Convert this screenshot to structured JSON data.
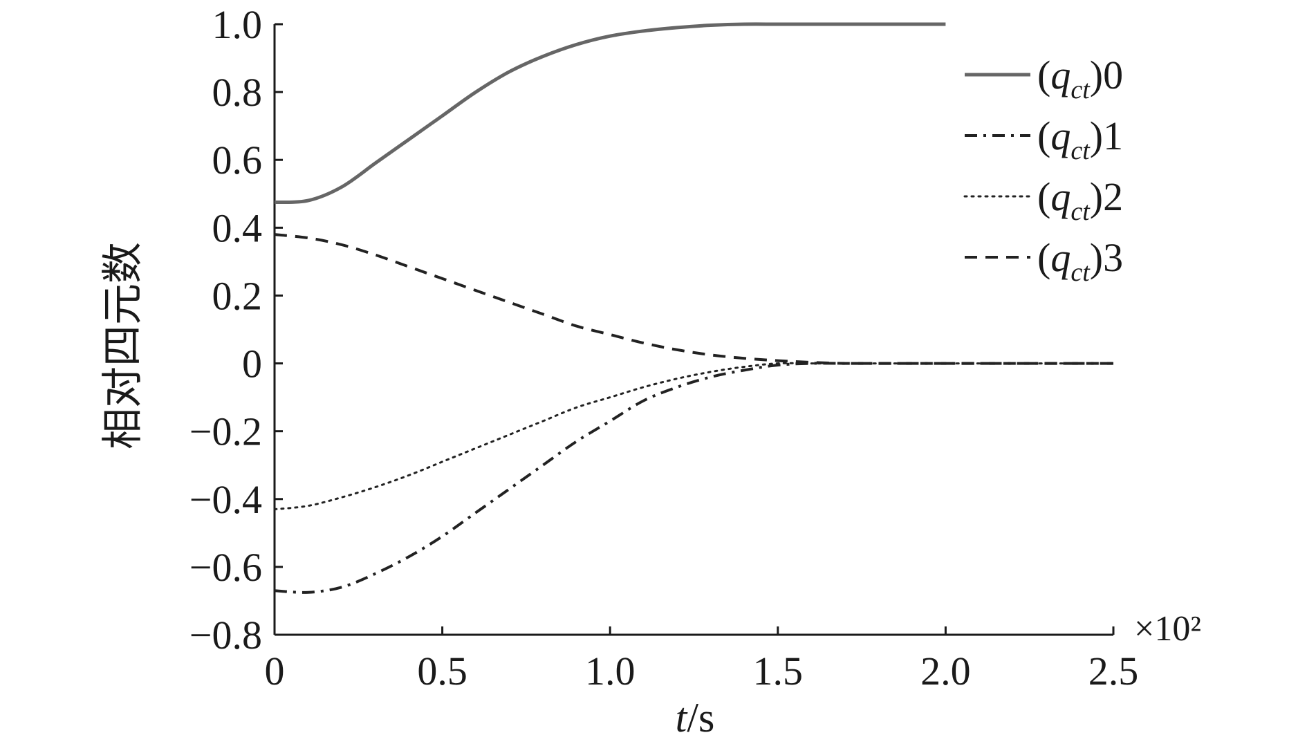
{
  "chart_data": {
    "type": "line",
    "title": "",
    "xlabel": "t/s",
    "ylabel": "相对四元数",
    "x_multiplier": "×10²",
    "xlim": [
      0,
      2.5
    ],
    "ylim": [
      -0.8,
      1.0
    ],
    "x_ticks": [
      {
        "value": 0,
        "label": "0"
      },
      {
        "value": 0.5,
        "label": "0.5"
      },
      {
        "value": 1.0,
        "label": "1.0"
      },
      {
        "value": 1.5,
        "label": "1.5"
      },
      {
        "value": 2.0,
        "label": "2.0"
      },
      {
        "value": 2.5,
        "label": "2.5"
      }
    ],
    "y_ticks": [
      {
        "value": 1.0,
        "label": "1.0"
      },
      {
        "value": 0.8,
        "label": "0.8"
      },
      {
        "value": 0.6,
        "label": "0.6"
      },
      {
        "value": 0.4,
        "label": "0.4"
      },
      {
        "value": 0.2,
        "label": "0.2"
      },
      {
        "value": 0,
        "label": "0"
      },
      {
        "value": -0.2,
        "label": "−0.2"
      },
      {
        "value": -0.4,
        "label": "−0.4"
      },
      {
        "value": -0.6,
        "label": "−0.6"
      },
      {
        "value": -0.8,
        "label": "−0.8"
      }
    ],
    "grid": false,
    "legend_position": "top-right",
    "series": [
      {
        "name": "(q_ct)0",
        "legend_base": "q",
        "legend_sub": "ct",
        "legend_suffix": "0",
        "color": "#666666",
        "style": "solid",
        "x": [
          0,
          0.1,
          0.2,
          0.3,
          0.4,
          0.5,
          0.6,
          0.7,
          0.8,
          0.9,
          1.0,
          1.1,
          1.2,
          1.3,
          1.4,
          1.5,
          1.6,
          1.7,
          1.8,
          1.9,
          2.0
        ],
        "y": [
          0.475,
          0.48,
          0.52,
          0.59,
          0.66,
          0.73,
          0.8,
          0.86,
          0.905,
          0.94,
          0.965,
          0.98,
          0.99,
          0.997,
          1.0,
          1.0,
          1.0,
          1.0,
          1.0,
          1.0,
          1.0
        ]
      },
      {
        "name": "(q_ct)1",
        "legend_base": "q",
        "legend_sub": "ct",
        "legend_suffix": "1",
        "color": "#222222",
        "style": "dashdot",
        "x": [
          0,
          0.1,
          0.2,
          0.3,
          0.4,
          0.5,
          0.6,
          0.7,
          0.8,
          0.9,
          1.0,
          1.1,
          1.2,
          1.3,
          1.4,
          1.5,
          1.6,
          1.7,
          1.8,
          1.9,
          2.0,
          2.1,
          2.2,
          2.3,
          2.4,
          2.5
        ],
        "y": [
          -0.67,
          -0.675,
          -0.66,
          -0.62,
          -0.57,
          -0.51,
          -0.44,
          -0.37,
          -0.3,
          -0.23,
          -0.17,
          -0.11,
          -0.07,
          -0.04,
          -0.02,
          -0.005,
          0,
          0,
          0,
          0,
          0,
          0,
          0,
          0,
          0,
          0
        ]
      },
      {
        "name": "(q_ct)2",
        "legend_base": "q",
        "legend_sub": "ct",
        "legend_suffix": "2",
        "color": "#222222",
        "style": "dotted",
        "x": [
          0,
          0.1,
          0.2,
          0.3,
          0.4,
          0.5,
          0.6,
          0.7,
          0.8,
          0.9,
          1.0,
          1.1,
          1.2,
          1.3,
          1.4,
          1.5,
          1.6,
          1.7,
          1.8,
          1.9,
          2.0,
          2.1,
          2.2,
          2.3,
          2.4,
          2.5
        ],
        "y": [
          -0.43,
          -0.42,
          -0.395,
          -0.365,
          -0.33,
          -0.29,
          -0.25,
          -0.21,
          -0.17,
          -0.13,
          -0.1,
          -0.07,
          -0.045,
          -0.025,
          -0.01,
          0,
          0,
          0,
          0,
          0,
          0,
          0,
          0,
          0,
          0,
          0
        ]
      },
      {
        "name": "(q_ct)3",
        "legend_base": "q",
        "legend_sub": "ct",
        "legend_suffix": "3",
        "color": "#222222",
        "style": "dashed",
        "x": [
          0,
          0.1,
          0.2,
          0.3,
          0.4,
          0.5,
          0.6,
          0.7,
          0.8,
          0.9,
          1.0,
          1.1,
          1.2,
          1.3,
          1.4,
          1.5,
          1.6,
          1.7,
          1.8,
          1.9,
          2.0,
          2.1,
          2.2,
          2.3,
          2.4,
          2.5
        ],
        "y": [
          0.38,
          0.37,
          0.35,
          0.32,
          0.285,
          0.25,
          0.215,
          0.18,
          0.145,
          0.11,
          0.085,
          0.06,
          0.04,
          0.025,
          0.015,
          0.008,
          0.003,
          0,
          0,
          0,
          0,
          0,
          0,
          0,
          0,
          0
        ]
      }
    ]
  }
}
